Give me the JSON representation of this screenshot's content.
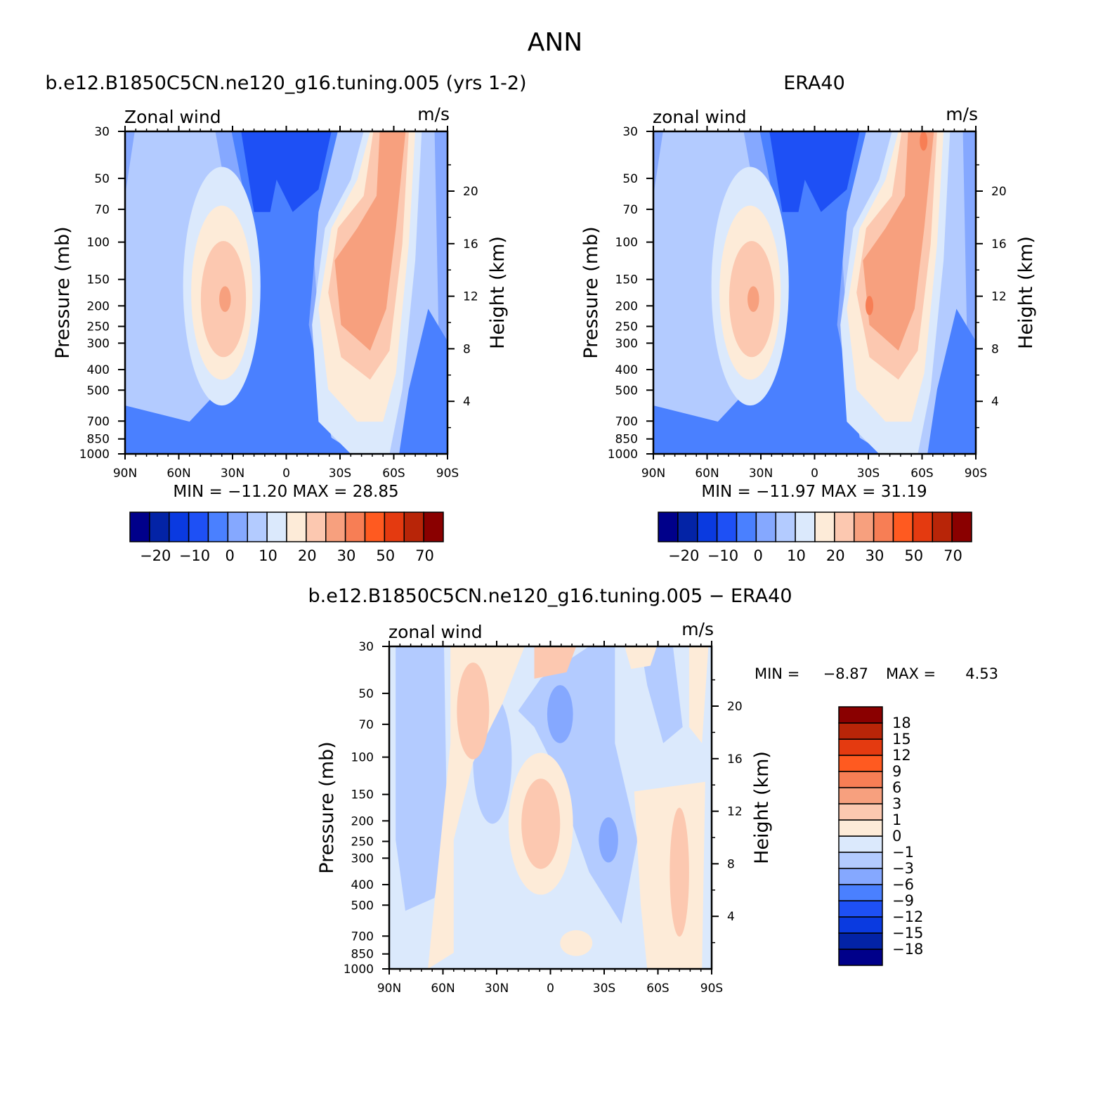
{
  "figure_title": "ANN",
  "tick_labels_common": {
    "lat": [
      "90N",
      "60N",
      "30N",
      "0",
      "30S",
      "60S",
      "90S"
    ],
    "pressure": [
      "30",
      "50",
      "70",
      "100",
      "150",
      "200",
      "250",
      "300",
      "400",
      "500",
      "700",
      "850",
      "1000"
    ],
    "height": [
      "20",
      "16",
      "12",
      "8",
      "4"
    ]
  },
  "colors": {
    "ref_bins": [
      "#00008a",
      "#0323a6",
      "#0a3ae0",
      "#1e50f5",
      "#4a80ff",
      "#85a8ff",
      "#b3cbff",
      "#dbe9fc",
      "#fdebd8",
      "#fcc8b0",
      "#f7a07e",
      "#f77e55",
      "#ff5a20",
      "#e43a10",
      "#b82508",
      "#8a0000"
    ],
    "diff_bins": [
      "#00008a",
      "#0323a6",
      "#0a3ae0",
      "#1e50f5",
      "#4a80ff",
      "#85a8ff",
      "#b3cbff",
      "#dbe9fc",
      "#fdebd8",
      "#fcc8b0",
      "#f7a07e",
      "#f77e55",
      "#ff5a20",
      "#e43a10",
      "#b82508",
      "#8a0000"
    ]
  },
  "chart_data": [
    {
      "type": "heatmap",
      "title": "b.e12.B1850C5CN.ne120_g16.tuning.005 (yrs 1-2)",
      "left_label": "Zonal wind",
      "right_label": "m/s",
      "xlabel": "",
      "ylabel": "Pressure (mb)",
      "ylabel_right": "Height (km)",
      "x_range": [
        "90N",
        "90S"
      ],
      "y_range": [
        1000,
        30
      ],
      "y_scale": "log",
      "min_max_text": "MIN = −11.20   MAX =   28.85",
      "min": -11.2,
      "max": 28.85,
      "colorbar_labels": [
        "−20",
        "−10",
        "0",
        "10",
        "20",
        "30",
        "50",
        "70"
      ]
    },
    {
      "type": "heatmap",
      "title": "ERA40",
      "left_label": "zonal wind",
      "right_label": "m/s",
      "xlabel": "",
      "ylabel": "Pressure (mb)",
      "ylabel_right": "Height (km)",
      "x_range": [
        "90N",
        "90S"
      ],
      "y_range": [
        1000,
        30
      ],
      "y_scale": "log",
      "min_max_text": "MIN = −11.97   MAX =   31.19",
      "min": -11.97,
      "max": 31.19,
      "colorbar_labels": [
        "−20",
        "−10",
        "0",
        "10",
        "20",
        "30",
        "50",
        "70"
      ]
    },
    {
      "type": "heatmap",
      "title": "b.e12.B1850C5CN.ne120_g16.tuning.005 − ERA40",
      "left_label": "zonal wind",
      "right_label": "m/s",
      "xlabel": "",
      "ylabel": "Pressure (mb)",
      "ylabel_right": "Height (km)",
      "x_range": [
        "90N",
        "90S"
      ],
      "y_range": [
        1000,
        30
      ],
      "y_scale": "log",
      "min_label": "MIN =",
      "min_value": "−8.87",
      "max_label": "MAX =",
      "max_value": "4.53",
      "min": -8.87,
      "max": 4.53,
      "colorbar_labels": [
        "18",
        "15",
        "12",
        "9",
        "6",
        "3",
        "1",
        "0",
        "−1",
        "−3",
        "−6",
        "−9",
        "−12",
        "−15",
        "−18"
      ]
    }
  ]
}
